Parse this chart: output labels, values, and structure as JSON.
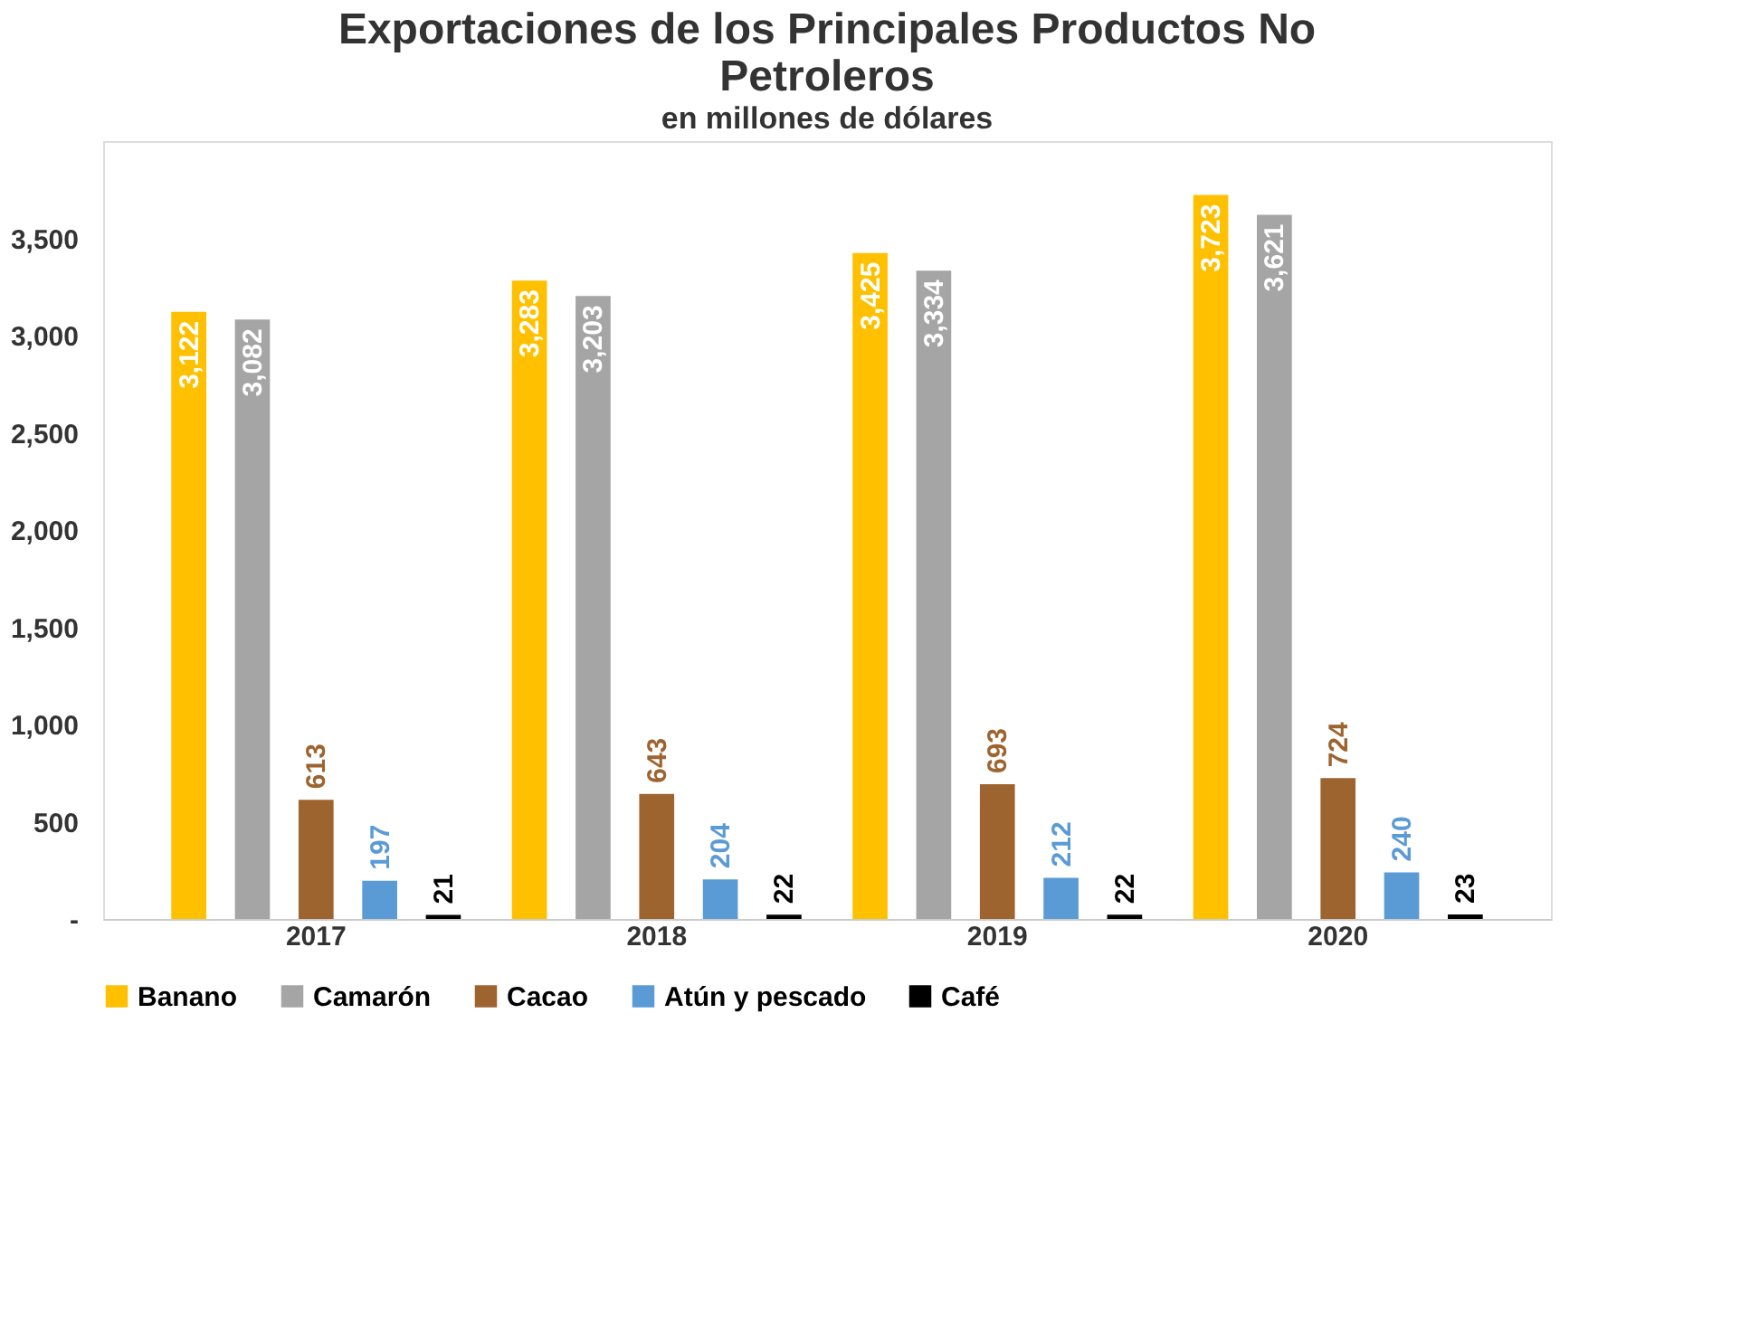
{
  "chart_data": {
    "type": "bar",
    "title": "Exportaciones de los Principales Productos No Petroleros",
    "subtitle": "en millones de dólares",
    "categories": [
      "2017",
      "2018",
      "2019",
      "2020"
    ],
    "series": [
      {
        "name": "Banano",
        "color": "#ffc000",
        "values": [
          3122,
          3283,
          3425,
          3723
        ],
        "value_labels": [
          "3,122",
          "3,283",
          "3,425",
          "3,723"
        ]
      },
      {
        "name": "Camarón",
        "color": "#a5a5a5",
        "values": [
          3082,
          3203,
          3334,
          3621
        ],
        "value_labels": [
          "3,082",
          "3,203",
          "3,334",
          "3,621"
        ]
      },
      {
        "name": "Cacao",
        "color": "#9e6430",
        "values": [
          613,
          643,
          693,
          724
        ],
        "value_labels": [
          "613",
          "643",
          "693",
          "724"
        ]
      },
      {
        "name": "Atún y pescado",
        "color": "#5b9bd5",
        "values": [
          197,
          204,
          212,
          240
        ],
        "value_labels": [
          "197",
          "204",
          "212",
          "240"
        ]
      },
      {
        "name": "Café",
        "color": "#000000",
        "values": [
          21,
          22,
          22,
          23
        ],
        "value_labels": [
          "21",
          "22",
          "22",
          "23"
        ]
      }
    ],
    "ylim": [
      0,
      4000
    ],
    "yticks": [
      {
        "value": 0,
        "label": "-"
      },
      500,
      {
        "value": 1000,
        "label": "1,000"
      },
      {
        "value": 1500,
        "label": "1,500"
      },
      {
        "value": 2000,
        "label": "2,000"
      },
      {
        "value": 2500,
        "label": "2,500"
      },
      {
        "value": 3000,
        "label": "3,000"
      },
      {
        "value": 3500,
        "label": "3,500"
      }
    ],
    "grid": false,
    "legend": "bottom"
  }
}
